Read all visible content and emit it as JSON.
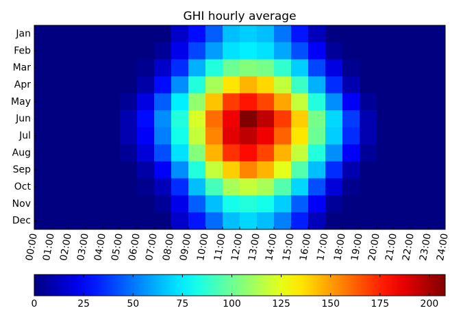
{
  "chart_data": {
    "type": "heatmap",
    "title": "GHI hourly average",
    "colormap": "jet",
    "rows": [
      "Jan",
      "Feb",
      "Mar",
      "Apr",
      "May",
      "Jun",
      "Jul",
      "Aug",
      "Sep",
      "Oct",
      "Nov",
      "Dec"
    ],
    "xlim": [
      0,
      24
    ],
    "xticks": [
      {
        "value": 0,
        "label": "00:00"
      },
      {
        "value": 1,
        "label": "01:00"
      },
      {
        "value": 2,
        "label": "02:00"
      },
      {
        "value": 3,
        "label": "03:00"
      },
      {
        "value": 4,
        "label": "04:00"
      },
      {
        "value": 5,
        "label": "05:00"
      },
      {
        "value": 6,
        "label": "06:00"
      },
      {
        "value": 7,
        "label": "07:00"
      },
      {
        "value": 8,
        "label": "08:00"
      },
      {
        "value": 9,
        "label": "09:00"
      },
      {
        "value": 10,
        "label": "10:00"
      },
      {
        "value": 11,
        "label": "11:00"
      },
      {
        "value": 12,
        "label": "12:00"
      },
      {
        "value": 13,
        "label": "13:00"
      },
      {
        "value": 14,
        "label": "14:00"
      },
      {
        "value": 15,
        "label": "15:00"
      },
      {
        "value": 16,
        "label": "16:00"
      },
      {
        "value": 17,
        "label": "17:00"
      },
      {
        "value": 18,
        "label": "18:00"
      },
      {
        "value": 19,
        "label": "19:00"
      },
      {
        "value": 20,
        "label": "20:00"
      },
      {
        "value": 21,
        "label": "21:00"
      },
      {
        "value": 22,
        "label": "22:00"
      },
      {
        "value": 23,
        "label": "23:00"
      },
      {
        "value": 24,
        "label": "24:00"
      }
    ],
    "z": [
      [
        0,
        0,
        0,
        0,
        0,
        0,
        0,
        0,
        15,
        28,
        45,
        65,
        68,
        65,
        50,
        30,
        12,
        0,
        0,
        0,
        0,
        0,
        0,
        0
      ],
      [
        0,
        0,
        0,
        0,
        0,
        0,
        0,
        5,
        22,
        40,
        58,
        72,
        75,
        72,
        60,
        42,
        25,
        5,
        0,
        0,
        0,
        0,
        0,
        0
      ],
      [
        0,
        0,
        0,
        0,
        0,
        0,
        3,
        15,
        35,
        62,
        85,
        100,
        105,
        102,
        88,
        68,
        40,
        20,
        3,
        0,
        0,
        0,
        0,
        0
      ],
      [
        0,
        0,
        0,
        0,
        0,
        0,
        8,
        28,
        55,
        85,
        112,
        135,
        145,
        138,
        118,
        90,
        62,
        35,
        10,
        0,
        0,
        0,
        0,
        0
      ],
      [
        0,
        0,
        0,
        0,
        0,
        5,
        20,
        45,
        75,
        108,
        142,
        170,
        178,
        168,
        148,
        118,
        85,
        55,
        25,
        5,
        0,
        0,
        0,
        0
      ],
      [
        0,
        0,
        0,
        0,
        0,
        10,
        28,
        55,
        85,
        122,
        160,
        185,
        208,
        195,
        170,
        140,
        102,
        70,
        38,
        10,
        0,
        0,
        0,
        0
      ],
      [
        0,
        0,
        0,
        0,
        0,
        10,
        25,
        52,
        82,
        118,
        155,
        188,
        195,
        185,
        162,
        135,
        100,
        68,
        35,
        10,
        0,
        0,
        0,
        0
      ],
      [
        0,
        0,
        0,
        0,
        0,
        5,
        18,
        42,
        72,
        105,
        145,
        172,
        180,
        168,
        145,
        118,
        85,
        55,
        25,
        5,
        0,
        0,
        0,
        0
      ],
      [
        0,
        0,
        0,
        0,
        0,
        0,
        8,
        25,
        55,
        85,
        118,
        140,
        155,
        145,
        125,
        95,
        65,
        35,
        10,
        0,
        0,
        0,
        0,
        0
      ],
      [
        0,
        0,
        0,
        0,
        0,
        0,
        3,
        12,
        35,
        65,
        92,
        112,
        118,
        112,
        95,
        70,
        42,
        18,
        3,
        0,
        0,
        0,
        0,
        0
      ],
      [
        0,
        0,
        0,
        0,
        0,
        0,
        0,
        5,
        22,
        45,
        65,
        82,
        85,
        82,
        68,
        45,
        25,
        5,
        0,
        0,
        0,
        0,
        0,
        0
      ],
      [
        0,
        0,
        0,
        0,
        0,
        0,
        0,
        0,
        15,
        30,
        48,
        65,
        70,
        65,
        52,
        32,
        12,
        0,
        0,
        0,
        0,
        0,
        0,
        0
      ]
    ],
    "clim": [
      0,
      208
    ],
    "cticks": [
      0,
      25,
      50,
      75,
      100,
      125,
      150,
      175,
      200
    ]
  }
}
